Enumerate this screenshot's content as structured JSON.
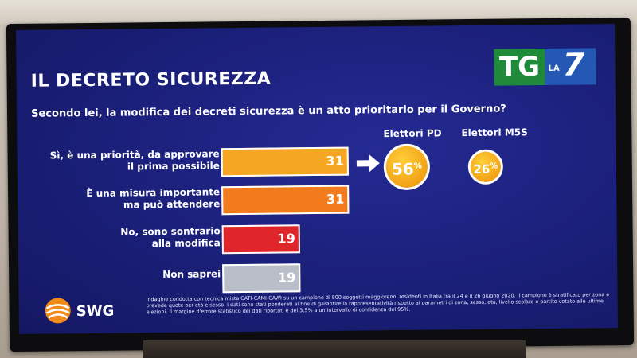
{
  "chart_data": {
    "type": "bar",
    "orientation": "horizontal",
    "title": "IL DECRETO SICUREZZA",
    "subtitle": "Secondo lei, la modifica dei decreti sicurezza è un atto prioritario per il Governo?",
    "categories": [
      {
        "line1": "Sì, è una priorità, da approvare",
        "line2": "il prima possibile"
      },
      {
        "line1": "È una misura importante",
        "line2": "ma può attendere"
      },
      {
        "line1": "No, sono sontrario",
        "line2": "alla modifica"
      },
      {
        "line1": "Non saprei",
        "line2": ""
      }
    ],
    "values": [
      31,
      31,
      19,
      19
    ],
    "colors": [
      "#f5a623",
      "#f27b1e",
      "#e0262b",
      "#b9bec8"
    ],
    "xlim": [
      0,
      31
    ],
    "callouts": [
      {
        "name": "Elettori PD",
        "value": 56,
        "unit": "%"
      },
      {
        "name": "Elettori M5S",
        "value": 26,
        "unit": "%"
      }
    ]
  },
  "brand": {
    "channel_tg": "TG",
    "channel_la": "LA",
    "channel_7": "7",
    "pollster": "SWG"
  },
  "footnote": "Indagine condotta con tecnica mista CATI-CAMI-CAWI su un campione di 800 soggetti maggiorenni residenti in Italia tra il 24 e il 26 giugno 2020. Il campione è stratificato per zona e prevede quote per età e sesso. I dati sono stati ponderati al fine di garantire la rappresentatività rispetto ai parametri di zona, sesso, età, livello scolare e partito votato alle ultime elezioni. Il margine d'errore statistico dei dati riportati è del 3,5% a un intervallo di confidenza del 95%."
}
